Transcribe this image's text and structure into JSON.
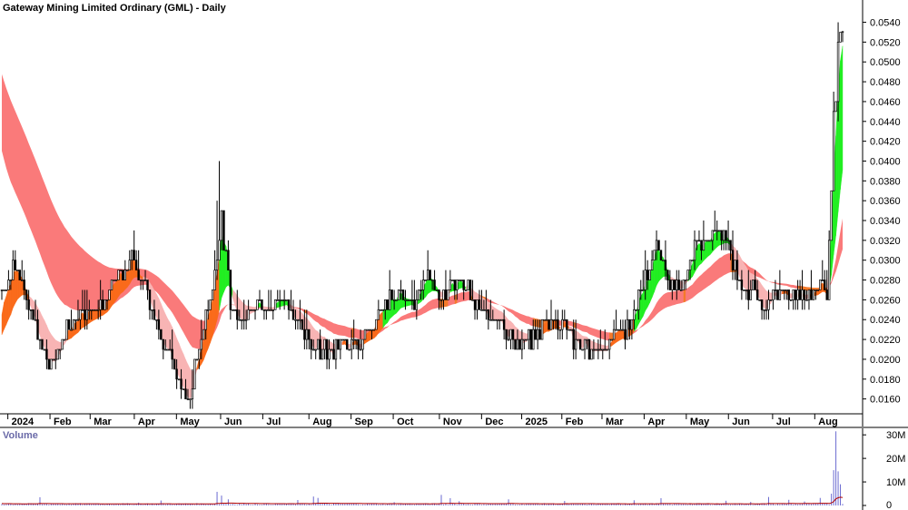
{
  "chart_data": {
    "type": "candlestick",
    "title": "Gateway Mining Limited Ordinary (GML) - Daily",
    "price_axis": {
      "ylim": [
        0.0145,
        0.0546
      ],
      "ticks": [
        "0.0160",
        "0.0180",
        "0.0200",
        "0.0220",
        "0.0240",
        "0.0260",
        "0.0280",
        "0.0300",
        "0.0320",
        "0.0340",
        "0.0360",
        "0.0380",
        "0.0400",
        "0.0420",
        "0.0440",
        "0.0460",
        "0.0480",
        "0.0500",
        "0.0520",
        "0.0540"
      ]
    },
    "month_labels": [
      "2024",
      "Feb",
      "Mar",
      "Apr",
      "May",
      "Jun",
      "Jul",
      "Aug",
      "Sep",
      "Oct",
      "Nov",
      "Dec",
      "2025",
      "Feb",
      "Mar",
      "Apr",
      "May",
      "Jun",
      "Jul",
      "Aug"
    ],
    "ohlc_keypoints": [
      {
        "i": 0,
        "price": 0.027
      },
      {
        "i": 6,
        "price": 0.03
      },
      {
        "i": 14,
        "price": 0.024
      },
      {
        "i": 22,
        "price": 0.019
      },
      {
        "i": 28,
        "price": 0.023
      },
      {
        "i": 36,
        "price": 0.025
      },
      {
        "i": 44,
        "price": 0.025
      },
      {
        "i": 52,
        "price": 0.028
      },
      {
        "i": 58,
        "price": 0.03
      },
      {
        "i": 66,
        "price": 0.026
      },
      {
        "i": 74,
        "price": 0.021
      },
      {
        "i": 80,
        "price": 0.017
      },
      {
        "i": 84,
        "price": 0.016
      },
      {
        "i": 88,
        "price": 0.022
      },
      {
        "i": 94,
        "price": 0.027
      },
      {
        "i": 98,
        "price": 0.034
      },
      {
        "i": 102,
        "price": 0.026
      },
      {
        "i": 108,
        "price": 0.024
      },
      {
        "i": 114,
        "price": 0.026
      },
      {
        "i": 120,
        "price": 0.025
      },
      {
        "i": 126,
        "price": 0.026
      },
      {
        "i": 132,
        "price": 0.024
      },
      {
        "i": 138,
        "price": 0.021
      },
      {
        "i": 146,
        "price": 0.021
      },
      {
        "i": 154,
        "price": 0.022
      },
      {
        "i": 160,
        "price": 0.022
      },
      {
        "i": 166,
        "price": 0.024
      },
      {
        "i": 172,
        "price": 0.026
      },
      {
        "i": 178,
        "price": 0.027
      },
      {
        "i": 184,
        "price": 0.026
      },
      {
        "i": 190,
        "price": 0.028
      },
      {
        "i": 196,
        "price": 0.026
      },
      {
        "i": 202,
        "price": 0.028
      },
      {
        "i": 208,
        "price": 0.027
      },
      {
        "i": 214,
        "price": 0.025
      },
      {
        "i": 220,
        "price": 0.024
      },
      {
        "i": 226,
        "price": 0.022
      },
      {
        "i": 232,
        "price": 0.022
      },
      {
        "i": 238,
        "price": 0.022
      },
      {
        "i": 244,
        "price": 0.024
      },
      {
        "i": 250,
        "price": 0.023
      },
      {
        "i": 256,
        "price": 0.022
      },
      {
        "i": 262,
        "price": 0.021
      },
      {
        "i": 268,
        "price": 0.021
      },
      {
        "i": 274,
        "price": 0.023
      },
      {
        "i": 280,
        "price": 0.023
      },
      {
        "i": 286,
        "price": 0.028
      },
      {
        "i": 292,
        "price": 0.031
      },
      {
        "i": 298,
        "price": 0.028
      },
      {
        "i": 304,
        "price": 0.027
      },
      {
        "i": 310,
        "price": 0.032
      },
      {
        "i": 316,
        "price": 0.032
      },
      {
        "i": 322,
        "price": 0.033
      },
      {
        "i": 328,
        "price": 0.028
      },
      {
        "i": 334,
        "price": 0.027
      },
      {
        "i": 340,
        "price": 0.026
      },
      {
        "i": 346,
        "price": 0.027
      },
      {
        "i": 352,
        "price": 0.027
      },
      {
        "i": 358,
        "price": 0.026
      },
      {
        "i": 362,
        "price": 0.027
      },
      {
        "i": 366,
        "price": 0.028
      },
      {
        "i": 368,
        "price": 0.027
      },
      {
        "i": 370,
        "price": 0.037
      },
      {
        "i": 371,
        "price": 0.045
      },
      {
        "i": 372,
        "price": 0.046
      },
      {
        "i": 373,
        "price": 0.052
      },
      {
        "i": 374,
        "price": 0.053
      }
    ],
    "volume_axis": {
      "ylim": [
        0,
        32000000
      ],
      "ticks": [
        "0",
        "10M",
        "20M",
        "30M"
      ],
      "label": "Volume"
    },
    "volume_spikes": [
      {
        "i": 17,
        "v": 3500000
      },
      {
        "i": 61,
        "v": 1200000
      },
      {
        "i": 71,
        "v": 2100000
      },
      {
        "i": 96,
        "v": 5800000
      },
      {
        "i": 98,
        "v": 4200000
      },
      {
        "i": 101,
        "v": 2600000
      },
      {
        "i": 132,
        "v": 2300000
      },
      {
        "i": 139,
        "v": 3800000
      },
      {
        "i": 141,
        "v": 3200000
      },
      {
        "i": 175,
        "v": 1400000
      },
      {
        "i": 196,
        "v": 4500000
      },
      {
        "i": 200,
        "v": 3100000
      },
      {
        "i": 204,
        "v": 1800000
      },
      {
        "i": 226,
        "v": 2600000
      },
      {
        "i": 251,
        "v": 1900000
      },
      {
        "i": 282,
        "v": 2200000
      },
      {
        "i": 294,
        "v": 3100000
      },
      {
        "i": 323,
        "v": 2000000
      },
      {
        "i": 334,
        "v": 1500000
      },
      {
        "i": 342,
        "v": 3600000
      },
      {
        "i": 351,
        "v": 2400000
      },
      {
        "i": 358,
        "v": 1700000
      },
      {
        "i": 365,
        "v": 3200000
      },
      {
        "i": 370,
        "v": 5000000
      },
      {
        "i": 371,
        "v": 15000000
      },
      {
        "i": 372,
        "v": 31500000
      },
      {
        "i": 373,
        "v": 14500000
      },
      {
        "i": 374,
        "v": 9000000
      }
    ],
    "colors": {
      "upper_band": "#fa7a7a",
      "lower_band_bull": "#22ee22",
      "lower_band_bear": "#fa6a1a",
      "lower_band_neutral": "#f8b4b4",
      "upper_band_highlight": "#f47a2a",
      "volume_bar": "#6a6ad0",
      "volume_line": "#b00000",
      "candle": "#000000"
    }
  }
}
